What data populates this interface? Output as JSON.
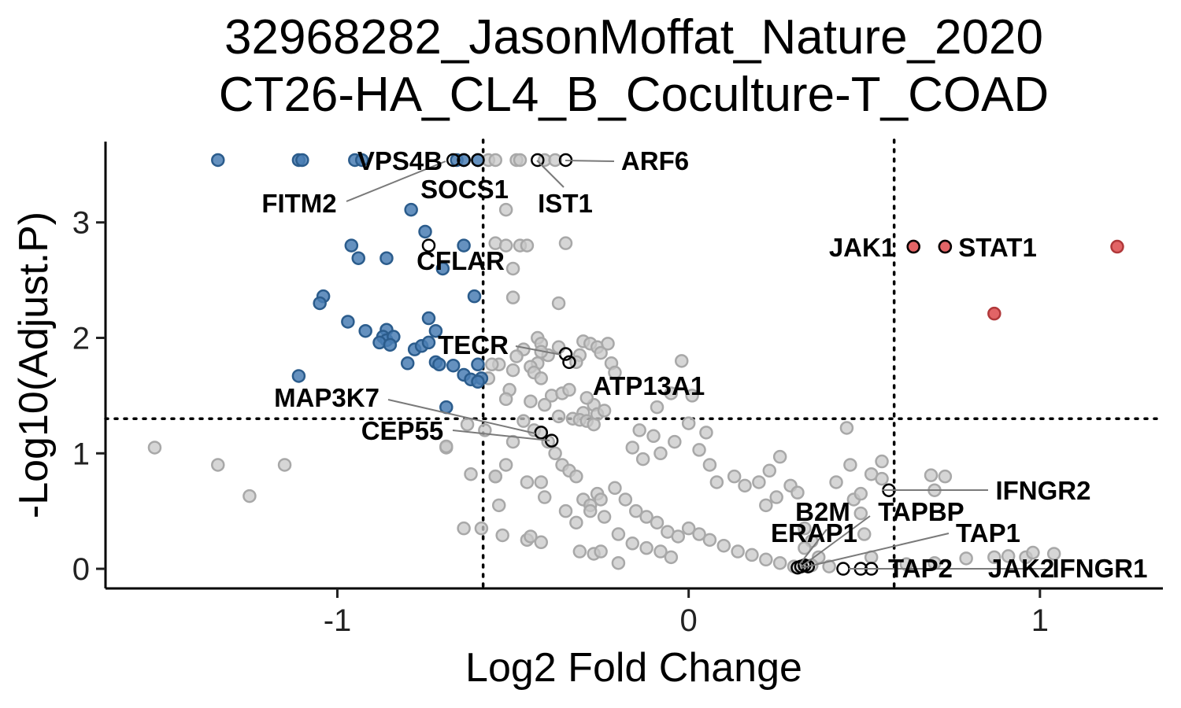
{
  "chart_data": {
    "type": "scatter",
    "title": "32968282_JasonMoffat_Nature_2020",
    "subtitle": "CT26-HA_CL4_B_Coculture-T_COAD",
    "xlabel": "Log2 Fold Change",
    "ylabel": "-Log10(Adjust.P)",
    "xlim": [
      -1.66,
      1.35
    ],
    "ylim": [
      -0.17,
      3.7
    ],
    "xticks": [
      {
        "value": -1,
        "label": "-1"
      },
      {
        "value": 0,
        "label": "0"
      },
      {
        "value": 1,
        "label": "1"
      }
    ],
    "yticks": [
      {
        "value": 0,
        "label": "0"
      },
      {
        "value": 1,
        "label": "1"
      },
      {
        "value": 2,
        "label": "2"
      },
      {
        "value": 3,
        "label": "3"
      }
    ],
    "thresholds": {
      "x": [
        -0.585,
        0.585
      ],
      "y": 1.3
    },
    "colors": {
      "down": "#4a7eb4",
      "up": "#e26466",
      "ns": "#c8c8c8",
      "highlight": "#000000"
    },
    "down_points": [
      [
        -1.34,
        3.54
      ],
      [
        -1.11,
        3.54
      ],
      [
        -1.1,
        3.54
      ],
      [
        -0.95,
        3.54
      ],
      [
        -0.93,
        3.54
      ],
      [
        -0.66,
        3.54
      ],
      [
        -0.64,
        3.54
      ],
      [
        -0.6,
        3.54
      ],
      [
        -0.79,
        3.11
      ],
      [
        -0.75,
        2.92
      ],
      [
        -0.64,
        2.8
      ],
      [
        -0.96,
        2.8
      ],
      [
        -0.94,
        2.69
      ],
      [
        -0.86,
        2.69
      ],
      [
        -0.7,
        2.6
      ],
      [
        -1.04,
        2.36
      ],
      [
        -1.05,
        2.3
      ],
      [
        -0.61,
        2.36
      ],
      [
        -0.74,
        2.17
      ],
      [
        -0.72,
        2.06
      ],
      [
        -0.97,
        2.14
      ],
      [
        -0.92,
        2.06
      ],
      [
        -0.86,
        2.07
      ],
      [
        -0.87,
        2.01
      ],
      [
        -0.86,
        1.98
      ],
      [
        -0.84,
        2.01
      ],
      [
        -0.88,
        1.96
      ],
      [
        -0.85,
        1.94
      ],
      [
        -0.78,
        1.9
      ],
      [
        -0.76,
        1.93
      ],
      [
        -0.74,
        1.96
      ],
      [
        -0.8,
        1.78
      ],
      [
        -0.72,
        1.79
      ],
      [
        -0.71,
        1.77
      ],
      [
        -0.67,
        1.76
      ],
      [
        -0.6,
        1.77
      ],
      [
        -0.64,
        1.68
      ],
      [
        -0.62,
        1.64
      ],
      [
        -0.59,
        1.65
      ],
      [
        -0.6,
        1.62
      ],
      [
        -1.11,
        1.67
      ],
      [
        -0.69,
        1.4
      ]
    ],
    "up_points": [
      [
        0.64,
        2.79
      ],
      [
        0.73,
        2.79
      ],
      [
        1.22,
        2.79
      ],
      [
        0.87,
        2.21
      ]
    ],
    "ns_points": [
      [
        -0.57,
        3.54
      ],
      [
        -0.55,
        3.54
      ],
      [
        -0.49,
        3.54
      ],
      [
        -0.48,
        3.54
      ],
      [
        -0.41,
        3.54
      ],
      [
        -0.38,
        3.54
      ],
      [
        -0.52,
        3.11
      ],
      [
        -0.35,
        2.82
      ],
      [
        -0.55,
        2.82
      ],
      [
        -0.52,
        2.8
      ],
      [
        -0.48,
        2.8
      ],
      [
        -0.46,
        2.8
      ],
      [
        -0.5,
        2.6
      ],
      [
        -0.5,
        2.35
      ],
      [
        -0.37,
        2.3
      ],
      [
        -0.43,
        2.0
      ],
      [
        -0.42,
        1.95
      ],
      [
        -0.37,
        1.92
      ],
      [
        -0.3,
        1.97
      ],
      [
        -0.28,
        1.95
      ],
      [
        -0.26,
        1.92
      ],
      [
        -0.25,
        1.87
      ],
      [
        -0.23,
        1.95
      ],
      [
        -0.31,
        1.85
      ],
      [
        -0.32,
        1.79
      ],
      [
        -0.4,
        1.85
      ],
      [
        -0.42,
        1.88
      ],
      [
        -0.43,
        1.78
      ],
      [
        -0.47,
        1.9
      ],
      [
        -0.49,
        1.84
      ],
      [
        -0.54,
        1.77
      ],
      [
        -0.56,
        1.77
      ],
      [
        -0.57,
        1.65
      ],
      [
        -0.51,
        1.55
      ],
      [
        -0.5,
        1.72
      ],
      [
        -0.45,
        1.75
      ],
      [
        -0.44,
        1.7
      ],
      [
        -0.42,
        1.65
      ],
      [
        -0.39,
        1.5
      ],
      [
        -0.36,
        1.52
      ],
      [
        -0.34,
        1.55
      ],
      [
        -0.27,
        1.42
      ],
      [
        -0.29,
        1.48
      ],
      [
        -0.22,
        1.78
      ],
      [
        -0.21,
        1.7
      ],
      [
        -0.3,
        1.35
      ],
      [
        -0.26,
        1.34
      ],
      [
        -0.24,
        1.37
      ],
      [
        -0.37,
        1.32
      ],
      [
        -0.33,
        1.3
      ],
      [
        -0.31,
        1.29
      ],
      [
        -0.29,
        1.28
      ],
      [
        -0.27,
        1.25
      ],
      [
        -0.47,
        1.28
      ],
      [
        -0.44,
        1.2
      ],
      [
        -0.42,
        1.18
      ],
      [
        -0.4,
        1.1
      ],
      [
        -0.38,
        1.0
      ],
      [
        -0.36,
        0.9
      ],
      [
        -0.34,
        0.85
      ],
      [
        -0.32,
        0.8
      ],
      [
        -0.3,
        0.6
      ],
      [
        -0.28,
        0.55
      ],
      [
        -0.26,
        0.65
      ],
      [
        -0.24,
        0.45
      ],
      [
        -0.5,
        1.1
      ],
      [
        -0.52,
        0.9
      ],
      [
        -0.55,
        0.8
      ],
      [
        -0.59,
        0.35
      ],
      [
        -0.64,
        0.35
      ],
      [
        -0.53,
        0.29
      ],
      [
        -0.46,
        0.25
      ],
      [
        -0.45,
        0.28
      ],
      [
        -0.42,
        0.23
      ],
      [
        -0.31,
        0.15
      ],
      [
        -0.27,
        0.13
      ],
      [
        -0.58,
        1.2
      ],
      [
        -0.63,
        1.25
      ],
      [
        -0.69,
        1.05
      ],
      [
        -0.52,
        1.47
      ],
      [
        -0.45,
        1.45
      ],
      [
        -0.41,
        1.42
      ],
      [
        -0.02,
        1.8
      ],
      [
        0.01,
        1.5
      ],
      [
        -0.05,
        1.52
      ],
      [
        -0.09,
        1.4
      ],
      [
        -0.14,
        1.2
      ],
      [
        -0.1,
        1.15
      ],
      [
        0,
        1.26
      ],
      [
        0.05,
        1.18
      ],
      [
        -0.16,
        1.05
      ],
      [
        -0.13,
        0.95
      ],
      [
        -0.08,
        1.0
      ],
      [
        -0.04,
        1.1
      ],
      [
        0.03,
        1.03
      ],
      [
        0.06,
        0.9
      ],
      [
        0.08,
        0.75
      ],
      [
        0.13,
        0.8
      ],
      [
        0.16,
        0.72
      ],
      [
        0.2,
        0.75
      ],
      [
        0.23,
        0.85
      ],
      [
        0.26,
        0.97
      ],
      [
        0.29,
        0.72
      ],
      [
        0.31,
        0.66
      ],
      [
        0.33,
        0.35
      ],
      [
        0.35,
        0.24
      ],
      [
        0.42,
        0.75
      ],
      [
        0.46,
        0.9
      ],
      [
        0.47,
        0.6
      ],
      [
        0.49,
        0.65
      ],
      [
        0.52,
        0.82
      ],
      [
        0.55,
        0.93
      ],
      [
        0.55,
        0.78
      ],
      [
        0.49,
        0.48
      ],
      [
        0.22,
        0.55
      ],
      [
        0.25,
        0.62
      ],
      [
        0.33,
        0.18
      ],
      [
        0.37,
        0.1
      ],
      [
        0.5,
        0.3
      ],
      [
        0.52,
        0.1
      ],
      [
        0.69,
        0.81
      ],
      [
        0.73,
        0.8
      ],
      [
        0.7,
        0.68
      ],
      [
        0.87,
        0.1
      ],
      [
        0.91,
        0.11
      ],
      [
        0.96,
        0.1
      ],
      [
        0.98,
        0.14
      ],
      [
        1.04,
        0.13
      ],
      [
        0.79,
        0.09
      ],
      [
        0.62,
        0.04
      ],
      [
        0.7,
        0.05
      ],
      [
        0.45,
        1.22
      ],
      [
        -1.52,
        1.05
      ],
      [
        -1.34,
        0.9
      ],
      [
        -1.25,
        0.63
      ],
      [
        -1.15,
        0.9
      ],
      [
        -0.69,
        1.06
      ],
      [
        -0.62,
        0.82
      ],
      [
        -0.55,
        0.8
      ],
      [
        -0.54,
        0.55
      ],
      [
        -0.46,
        0.75
      ],
      [
        -0.42,
        0.75
      ],
      [
        -0.41,
        0.62
      ],
      [
        -0.35,
        0.5
      ],
      [
        -0.32,
        0.4
      ],
      [
        -0.28,
        0.5
      ],
      [
        -0.25,
        0.6
      ],
      [
        -0.21,
        0.7
      ],
      [
        -0.18,
        0.6
      ],
      [
        -0.15,
        0.5
      ],
      [
        -0.12,
        0.45
      ],
      [
        -0.09,
        0.4
      ],
      [
        -0.06,
        0.32
      ],
      [
        -0.03,
        0.28
      ],
      [
        0,
        0.35
      ],
      [
        0.03,
        0.3
      ],
      [
        0.06,
        0.25
      ],
      [
        0.1,
        0.2
      ],
      [
        0.14,
        0.15
      ],
      [
        0.18,
        0.12
      ],
      [
        0.22,
        0.08
      ],
      [
        0.26,
        0.05
      ],
      [
        0.3,
        0.02
      ],
      [
        -0.2,
        0.3
      ],
      [
        -0.16,
        0.22
      ],
      [
        -0.12,
        0.18
      ],
      [
        -0.08,
        0.15
      ],
      [
        -0.05,
        0.1
      ],
      [
        -0.2,
        0.05
      ],
      [
        -0.25,
        0.15
      ],
      [
        0.35,
        0.03
      ],
      [
        0.4,
        0.02
      ]
    ],
    "highlight_points": [
      {
        "gene": "VPS4B",
        "x": -0.6,
        "y": 3.54
      },
      {
        "gene": "FITM2",
        "x": -0.67,
        "y": 3.54
      },
      {
        "gene": "SOCS1",
        "x": -0.64,
        "y": 3.54
      },
      {
        "gene": "ARF6",
        "x": -0.35,
        "y": 3.54
      },
      {
        "gene": "IST1",
        "x": -0.43,
        "y": 3.54
      },
      {
        "gene": "CFLAR",
        "x": -0.74,
        "y": 2.8
      },
      {
        "gene": "JAK1",
        "x": 0.64,
        "y": 2.79
      },
      {
        "gene": "STAT1",
        "x": 0.73,
        "y": 2.79
      },
      {
        "gene": "TECR",
        "x": -0.35,
        "y": 1.86
      },
      {
        "gene": "ATP13A1",
        "x": -0.34,
        "y": 1.79
      },
      {
        "gene": "MAP3K7",
        "x": -0.42,
        "y": 1.18
      },
      {
        "gene": "CEP55",
        "x": -0.39,
        "y": 1.11
      },
      {
        "gene": "IFNGR2",
        "x": 0.57,
        "y": 0.68
      },
      {
        "gene": "B2M",
        "x": 0.32,
        "y": 0.02
      },
      {
        "gene": "TAPBP",
        "x": 0.33,
        "y": 0.03
      },
      {
        "gene": "ERAP1",
        "x": 0.31,
        "y": 0.01
      },
      {
        "gene": "TAP1",
        "x": 0.34,
        "y": 0.02
      },
      {
        "gene": "TAP2",
        "x": 0.44,
        "y": 0.0
      },
      {
        "gene": "JAK2",
        "x": 0.49,
        "y": 0.0
      },
      {
        "gene": "IFNGR1",
        "x": 0.52,
        "y": 0.0
      }
    ],
    "labels": [
      {
        "gene": "VPS4B",
        "text": "VPS4B",
        "anchor": "middle"
      },
      {
        "gene": "FITM2",
        "text": "FITM2",
        "anchor": "middle"
      },
      {
        "gene": "SOCS1",
        "text": "SOCS1",
        "anchor": "middle"
      },
      {
        "gene": "ARF6",
        "text": "ARF6",
        "anchor": "middle"
      },
      {
        "gene": "IST1",
        "text": "IST1",
        "anchor": "middle"
      },
      {
        "gene": "CFLAR",
        "text": "CFLAR",
        "anchor": "middle"
      },
      {
        "gene": "JAK1",
        "text": "JAK1",
        "anchor": "middle"
      },
      {
        "gene": "STAT1",
        "text": "STAT1",
        "anchor": "middle"
      },
      {
        "gene": "TECR",
        "text": "TECR",
        "anchor": "middle"
      },
      {
        "gene": "ATP13A1",
        "text": "ATP13A1",
        "anchor": "middle"
      },
      {
        "gene": "MAP3K7",
        "text": "MAP3K7",
        "anchor": "middle"
      },
      {
        "gene": "CEP55",
        "text": "CEP55",
        "anchor": "middle"
      },
      {
        "gene": "IFNGR2",
        "text": "IFNGR2",
        "anchor": "middle"
      },
      {
        "gene": "B2M",
        "text": "B2M",
        "anchor": "middle"
      },
      {
        "gene": "TAPBP",
        "text": "TAPBP",
        "anchor": "middle"
      },
      {
        "gene": "ERAP1",
        "text": "ERAP1",
        "anchor": "middle"
      },
      {
        "gene": "TAP1",
        "text": "TAP1",
        "anchor": "middle"
      },
      {
        "gene": "TAP2",
        "text": "TAP2",
        "anchor": "middle"
      },
      {
        "gene": "JAK2",
        "text": "JAK2",
        "anchor": "middle"
      },
      {
        "gene": "IFNGR1",
        "text": "IFNGR1",
        "anchor": "middle"
      }
    ]
  }
}
